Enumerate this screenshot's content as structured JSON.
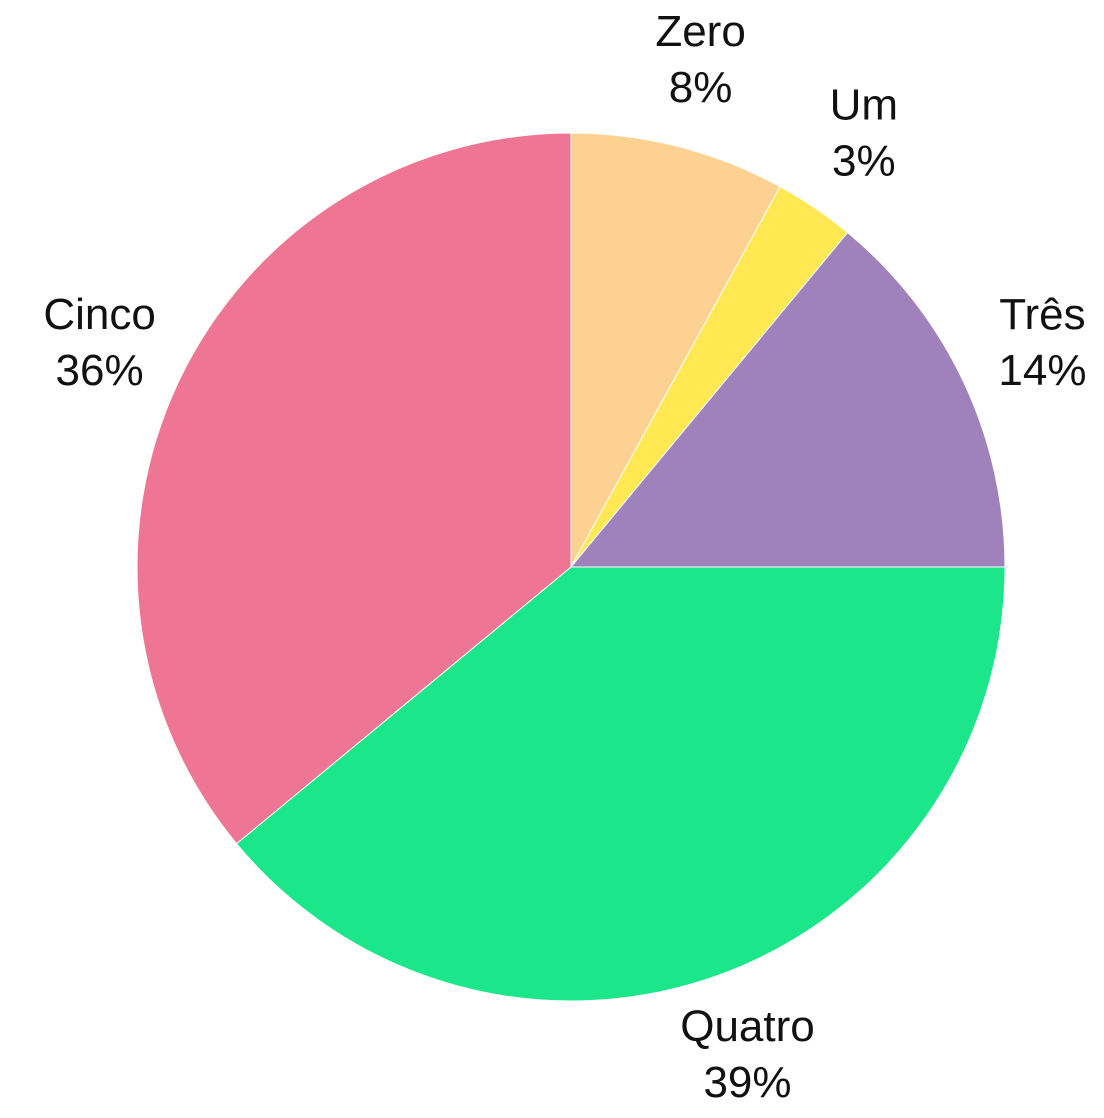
{
  "chart_data": {
    "type": "pie",
    "categories": [
      "Zero",
      "Um",
      "Três",
      "Quatro",
      "Cinco"
    ],
    "values": [
      8,
      3,
      14,
      39,
      36
    ],
    "value_labels": [
      "8%",
      "3%",
      "14%",
      "39%",
      "36%"
    ],
    "colors": [
      "#fdd192",
      "#ffe852",
      "#9f82bb",
      "#1ce68a",
      "#ee7694"
    ]
  }
}
